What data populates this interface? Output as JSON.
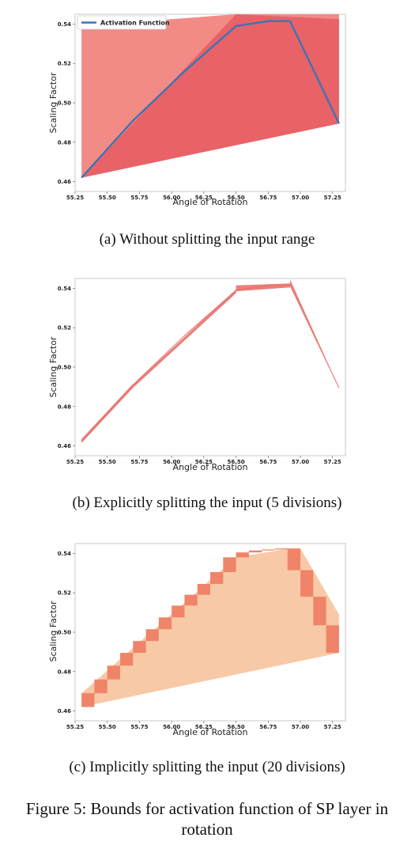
{
  "figure": {
    "caption_lines": [
      "Figure 5: Bounds for activation function of SP layer in",
      "rotation"
    ]
  },
  "chart_data": [
    {
      "type": "line",
      "caption": "(a) Without splitting the input range",
      "xlabel": "Angle of Rotation",
      "ylabel": "Scaling Factor",
      "xlim": [
        55.25,
        57.35
      ],
      "ylim": [
        0.455,
        0.545
      ],
      "xticks": [
        "55.25",
        "55.50",
        "55.75",
        "56.00",
        "56.25",
        "56.50",
        "56.75",
        "57.00",
        "57.25"
      ],
      "yticks": [
        "0.46",
        "0.48",
        "0.50",
        "0.52",
        "0.54"
      ],
      "legend": {
        "position": "top-left",
        "entries": [
          "Activation Function"
        ]
      },
      "colors": {
        "line": "#3a75b5",
        "bound_light": "#f28a86",
        "bound_dark": "#e96267"
      },
      "series": [
        {
          "name": "Activation Function",
          "x": [
            55.3,
            55.7,
            56.1,
            56.5,
            56.75,
            56.92,
            57.3
          ],
          "y": [
            0.462,
            0.491,
            0.516,
            0.539,
            0.5415,
            0.5415,
            0.4895
          ]
        }
      ],
      "bounds": [
        {
          "color": "bound_light",
          "x": [
            55.3,
            55.3,
            56.5,
            57.3,
            57.3
          ],
          "y": [
            0.462,
            0.539,
            0.545,
            0.545,
            0.4895
          ]
        },
        {
          "color": "bound_dark",
          "x": [
            55.3,
            56.5,
            57.3,
            57.3
          ],
          "y": [
            0.462,
            0.545,
            0.5425,
            0.4895
          ]
        }
      ]
    },
    {
      "type": "line",
      "caption": "(b) Explicitly splitting the input (5 divisions)",
      "xlabel": "Angle of Rotation",
      "ylabel": "Scaling Factor",
      "xlim": [
        55.25,
        57.35
      ],
      "ylim": [
        0.455,
        0.545
      ],
      "xticks": [
        "55.25",
        "55.50",
        "55.75",
        "56.00",
        "56.25",
        "56.50",
        "56.75",
        "57.00",
        "57.25"
      ],
      "yticks": [
        "0.46",
        "0.48",
        "0.50",
        "0.52",
        "0.54"
      ],
      "colors": {
        "line": "#e8706b",
        "bound": "#e8706b"
      },
      "series": [
        {
          "name": "",
          "x": [
            55.3,
            55.7,
            56.1,
            56.5,
            56.75,
            56.92,
            57.3
          ],
          "y": [
            0.462,
            0.491,
            0.516,
            0.539,
            0.5415,
            0.5415,
            0.4895
          ]
        }
      ],
      "bounds": [
        {
          "x": [
            55.3,
            55.7,
            55.7,
            55.3
          ],
          "y": [
            0.4615,
            0.4895,
            0.4915,
            0.4635
          ]
        },
        {
          "x": [
            55.7,
            56.5,
            56.5,
            55.7
          ],
          "y": [
            0.4895,
            0.5375,
            0.5395,
            0.491
          ]
        },
        {
          "x": [
            56.5,
            56.92,
            56.92,
            56.5
          ],
          "y": [
            0.5385,
            0.5405,
            0.5425,
            0.5415
          ]
        },
        {
          "x": [
            56.92,
            57.3,
            57.3,
            56.92
          ],
          "y": [
            0.5415,
            0.4895,
            0.4895,
            0.5445
          ]
        }
      ]
    },
    {
      "type": "line",
      "caption": "(c) Implicitly splitting the input (20 divisions)",
      "xlabel": "Angle of Rotation",
      "ylabel": "Scaling Factor",
      "xlim": [
        55.25,
        57.35
      ],
      "ylim": [
        0.455,
        0.545
      ],
      "xticks": [
        "55.25",
        "55.50",
        "55.75",
        "56.00",
        "56.25",
        "56.50",
        "56.75",
        "57.00",
        "57.25"
      ],
      "yticks": [
        "0.46",
        "0.48",
        "0.50",
        "0.52",
        "0.54"
      ],
      "colors": {
        "hull": "#f8c9a6",
        "box": "#ef8468"
      },
      "hull": {
        "x": [
          55.3,
          55.3,
          56.5,
          56.92,
          57.0,
          57.3,
          57.3
        ],
        "y": [
          0.462,
          0.469,
          0.538,
          0.5425,
          0.5425,
          0.509,
          0.4895
        ]
      },
      "boxes": [
        {
          "x": [
            55.3,
            55.4
          ],
          "y": [
            0.462,
            0.469
          ]
        },
        {
          "x": [
            55.4,
            55.5
          ],
          "y": [
            0.469,
            0.476
          ]
        },
        {
          "x": [
            55.5,
            55.6
          ],
          "y": [
            0.476,
            0.483
          ]
        },
        {
          "x": [
            55.6,
            55.7
          ],
          "y": [
            0.483,
            0.4895
          ]
        },
        {
          "x": [
            55.7,
            55.8
          ],
          "y": [
            0.4895,
            0.4955
          ]
        },
        {
          "x": [
            55.8,
            55.9
          ],
          "y": [
            0.4955,
            0.5015
          ]
        },
        {
          "x": [
            55.9,
            56.0
          ],
          "y": [
            0.5015,
            0.5075
          ]
        },
        {
          "x": [
            56.0,
            56.1
          ],
          "y": [
            0.5075,
            0.5135
          ]
        },
        {
          "x": [
            56.1,
            56.2
          ],
          "y": [
            0.5135,
            0.519
          ]
        },
        {
          "x": [
            56.2,
            56.3
          ],
          "y": [
            0.519,
            0.5245
          ]
        },
        {
          "x": [
            56.3,
            56.4
          ],
          "y": [
            0.5245,
            0.5305
          ]
        },
        {
          "x": [
            56.4,
            56.5
          ],
          "y": [
            0.5305,
            0.538
          ]
        },
        {
          "x": [
            56.5,
            56.6
          ],
          "y": [
            0.538,
            0.5405
          ]
        },
        {
          "x": [
            56.6,
            56.7
          ],
          "y": [
            0.5405,
            0.5415
          ]
        },
        {
          "x": [
            56.7,
            56.8
          ],
          "y": [
            0.5415,
            0.542
          ]
        },
        {
          "x": [
            56.8,
            56.9
          ],
          "y": [
            0.542,
            0.5425
          ]
        },
        {
          "x": [
            56.9,
            57.0
          ],
          "y": [
            0.5315,
            0.5425
          ]
        },
        {
          "x": [
            57.0,
            57.1
          ],
          "y": [
            0.518,
            0.5315
          ]
        },
        {
          "x": [
            57.1,
            57.2
          ],
          "y": [
            0.5035,
            0.518
          ]
        },
        {
          "x": [
            57.2,
            57.3
          ],
          "y": [
            0.4895,
            0.5035
          ]
        }
      ]
    }
  ]
}
